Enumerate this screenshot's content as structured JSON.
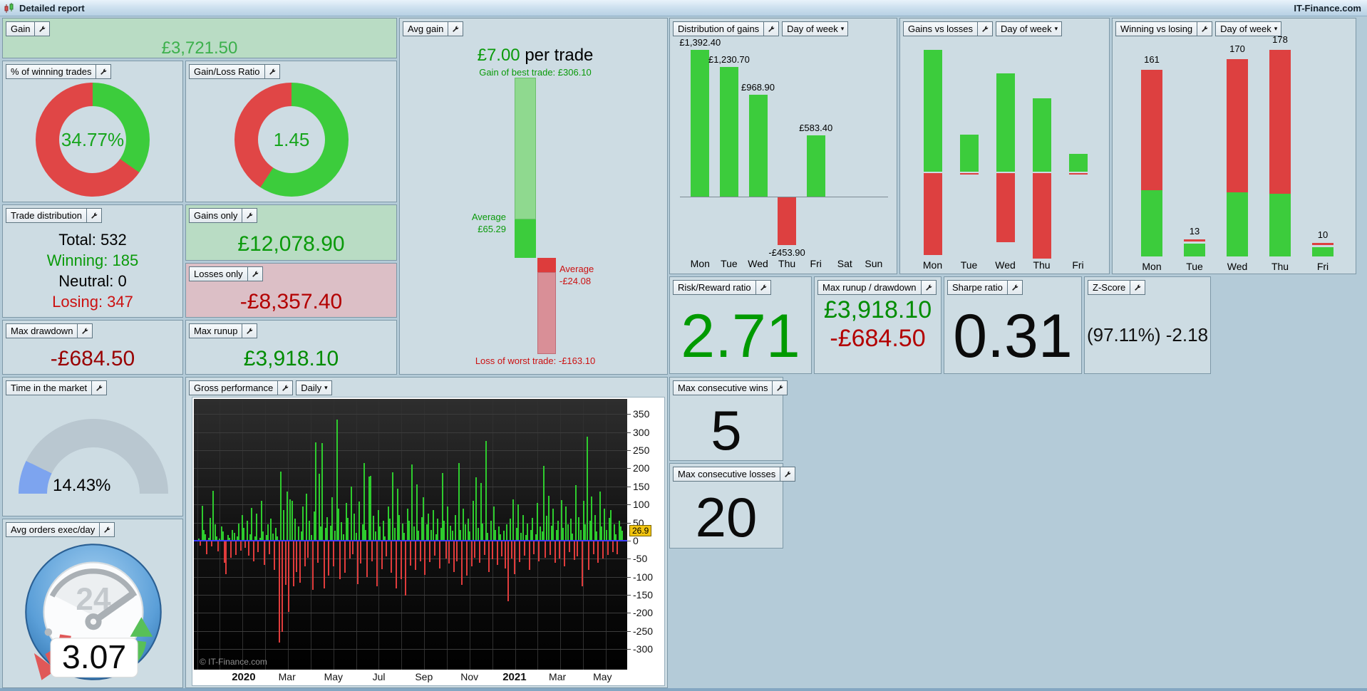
{
  "title_bar": {
    "title": "Detailed report",
    "brand": "IT-Finance.com"
  },
  "controls": {
    "day_of_week": "Day of week",
    "daily": "Daily"
  },
  "panels": {
    "gain": {
      "label": "Gain",
      "value": "£3,721.50"
    },
    "pct_winning": {
      "label": "% of winning trades",
      "value": "34.77%"
    },
    "gain_loss_ratio": {
      "label": "Gain/Loss Ratio",
      "value": "1.45"
    },
    "trade_distribution": {
      "label": "Trade distribution",
      "total": "Total: 532",
      "winning": "Winning: 185",
      "neutral": "Neutral: 0",
      "losing": "Losing: 347"
    },
    "gains_only": {
      "label": "Gains only",
      "value": "£12,078.90"
    },
    "losses_only": {
      "label": "Losses only",
      "value": "-£8,357.40"
    },
    "max_drawdown": {
      "label": "Max drawdown",
      "value": "-£684.50"
    },
    "max_runup": {
      "label": "Max runup",
      "value": "£3,918.10"
    },
    "avg_gain": {
      "label": "Avg gain",
      "value": "£7.00",
      "suffix": " per trade",
      "best": "Gain of best trade: £306.10",
      "avg_gain_line1": "Average",
      "avg_gain_line2": "£65.29",
      "avg_loss_line1": "Average",
      "avg_loss_line2": "-£24.08",
      "worst": "Loss of worst trade: -£163.10"
    },
    "time_in_market": {
      "label": "Time in the market",
      "value": "14.43%"
    },
    "avg_orders": {
      "label": "Avg orders exec/day",
      "value": "3.07",
      "clock_text": "24"
    },
    "gross_performance": {
      "label": "Gross performance",
      "watermark": "© IT-Finance.com",
      "last_value": "26.9"
    },
    "distribution_of_gains": {
      "label": "Distribution of gains"
    },
    "gains_vs_losses": {
      "label": "Gains vs losses"
    },
    "winning_vs_losing": {
      "label": "Winning vs losing"
    },
    "risk_reward": {
      "label": "Risk/Reward ratio",
      "value": "2.71"
    },
    "runup_drawdown": {
      "label": "Max runup / drawdown",
      "runup": "£3,918.10",
      "drawdown": "-£684.50"
    },
    "sharpe": {
      "label": "Sharpe ratio",
      "value": "0.31"
    },
    "z_score": {
      "label": "Z-Score",
      "value": "(97.11%) -2.18"
    },
    "max_consec_wins": {
      "label": "Max consecutive wins",
      "value": "5"
    },
    "max_consec_losses": {
      "label": "Max consecutive losses",
      "value": "20"
    }
  },
  "colors": {
    "green_bar": "#3ccc3c",
    "red_bar": "#dd4040",
    "green_light": "#8fd98f",
    "red_light": "#d98f97",
    "gauge_fill": "#7da4ef",
    "gauge_track": "#b9c7d0",
    "zero_line": "#3c3cff",
    "badge_bg": "#f2c40f"
  },
  "chart_data": [
    {
      "id": "pct_winning_donut",
      "type": "pie",
      "labels": [
        "winning",
        "losing"
      ],
      "values": [
        34.77,
        65.23
      ],
      "colors": [
        "#3ccc3c",
        "#e04646"
      ],
      "center_label": "34.77%"
    },
    {
      "id": "gain_loss_donut",
      "type": "pie",
      "labels": [
        "gains",
        "losses"
      ],
      "values": [
        59.18,
        40.82
      ],
      "colors": [
        "#3ccc3c",
        "#e04646"
      ],
      "center_label": "1.45"
    },
    {
      "id": "avg_gain_waterfall",
      "type": "bar",
      "title": "£7.00 per trade",
      "best_trade": 306.1,
      "average_gain": 65.29,
      "average_loss": -24.08,
      "worst_trade": -163.1
    },
    {
      "id": "distribution_of_gains",
      "type": "bar",
      "title": "Distribution of gains",
      "filter": "Day of week",
      "categories": [
        "Mon",
        "Tue",
        "Wed",
        "Thu",
        "Fri",
        "Sat",
        "Sun"
      ],
      "values": [
        1392.4,
        1230.7,
        968.9,
        -453.9,
        583.4,
        0,
        0
      ],
      "value_labels": [
        "£1,392.40",
        "£1,230.70",
        "£968.90",
        "-£453.90",
        "£583.40",
        "",
        ""
      ]
    },
    {
      "id": "gains_vs_losses",
      "type": "bar",
      "title": "Gains vs losses",
      "filter": "Day of week",
      "categories": [
        "Mon",
        "Tue",
        "Wed",
        "Thu",
        "Fri"
      ],
      "series": [
        {
          "name": "gains",
          "values": [
            4210,
            1280,
            3400,
            2540,
            620
          ]
        },
        {
          "name": "losses",
          "values": [
            -2820,
            -45,
            -2390,
            -2945,
            -45
          ]
        }
      ]
    },
    {
      "id": "winning_vs_losing",
      "type": "bar",
      "title": "Winning vs losing",
      "filter": "Day of week",
      "categories": [
        "Mon",
        "Tue",
        "Wed",
        "Thu",
        "Fri"
      ],
      "totals": [
        161,
        13,
        170,
        178,
        10
      ],
      "series": [
        {
          "name": "winning",
          "values": [
            57,
            11,
            55,
            54,
            8
          ]
        },
        {
          "name": "losing",
          "values": [
            104,
            2,
            115,
            124,
            2
          ]
        }
      ]
    },
    {
      "id": "time_in_market_gauge",
      "type": "pie",
      "value": 14.43,
      "max": 100
    },
    {
      "id": "gross_performance",
      "type": "bar",
      "title": "Gross performance",
      "interval": "Daily",
      "ylim": [
        -357,
        392
      ],
      "yticks": [
        350,
        300,
        250,
        200,
        150,
        100,
        50,
        0,
        -50,
        -100,
        -150,
        -200,
        -250,
        -300
      ],
      "x_labels": [
        {
          "text": "2020",
          "pos": 0.115,
          "bold": true
        },
        {
          "text": "Mar",
          "pos": 0.215
        },
        {
          "text": "May",
          "pos": 0.322
        },
        {
          "text": "Jul",
          "pos": 0.427
        },
        {
          "text": "Sep",
          "pos": 0.531
        },
        {
          "text": "Nov",
          "pos": 0.636
        },
        {
          "text": "2021",
          "pos": 0.74,
          "bold": true
        },
        {
          "text": "Mar",
          "pos": 0.839
        },
        {
          "text": "May",
          "pos": 0.943
        }
      ],
      "last_value": 26.9,
      "values": [
        5,
        -12,
        97,
        30,
        18,
        -35,
        8,
        62,
        -15,
        137,
        45,
        12,
        -28,
        6,
        40,
        25,
        -60,
        -90,
        15,
        8,
        -45,
        30,
        22,
        -38,
        12,
        48,
        -25,
        70,
        35,
        -18,
        55,
        -40,
        18,
        90,
        -55,
        12,
        75,
        -30,
        8,
        110,
        25,
        -65,
        15,
        45,
        -35,
        60,
        20,
        -80,
        35,
        12,
        -280,
        192,
        -250,
        85,
        -120,
        135,
        -195,
        115,
        110,
        -125,
        60,
        -85,
        40,
        -115,
        25,
        95,
        -70,
        130,
        -45,
        55,
        15,
        -135,
        80,
        272,
        -60,
        185,
        40,
        270,
        -130,
        35,
        65,
        -95,
        42,
        120,
        -70,
        28,
        335,
        88,
        -105,
        52,
        18,
        -88,
        105,
        62,
        -48,
        150,
        -35,
        75,
        22,
        -118,
        108,
        -62,
        45,
        215,
        30,
        -98,
        178,
        180,
        -55,
        68,
        25,
        -125,
        85,
        40,
        -78,
        55,
        12,
        -42,
        95,
        60,
        -88,
        190,
        35,
        -130,
        143,
        70,
        -105,
        48,
        22,
        -150,
        88,
        55,
        -68,
        210,
        40,
        -80,
        156,
        28,
        -55,
        65,
        120,
        -92,
        45,
        75,
        -58,
        30,
        85,
        -40,
        18,
        60,
        -75,
        35,
        188,
        55,
        -48,
        95,
        -62,
        42,
        28,
        -85,
        70,
        -55,
        215,
        30,
        -120,
        88,
        45,
        -95,
        60,
        25,
        -70,
        110,
        -45,
        175,
        35,
        -60,
        160,
        48,
        -38,
        275,
        22,
        -85,
        55,
        -50,
        95,
        30,
        -65,
        40,
        18,
        -42,
        28,
        -75,
        45,
        -165,
        60,
        -48,
        115,
        -90,
        35,
        100,
        -58,
        22,
        70,
        -40,
        15,
        48,
        -80,
        30,
        62,
        -35,
        18,
        105,
        -55,
        40,
        25,
        207,
        -45,
        68,
        125,
        -38,
        42,
        88,
        -60,
        30,
        55,
        -48,
        112,
        35,
        -70,
        95,
        45,
        -30,
        60,
        20,
        -52,
        153,
        -42,
        65,
        30,
        -125,
        110,
        45,
        287,
        -80,
        55,
        122,
        -35,
        70,
        25,
        -60,
        135,
        40,
        -48,
        88,
        30,
        -38,
        62,
        85,
        -30,
        45,
        18,
        -35,
        55,
        40,
        26.9
      ]
    }
  ]
}
